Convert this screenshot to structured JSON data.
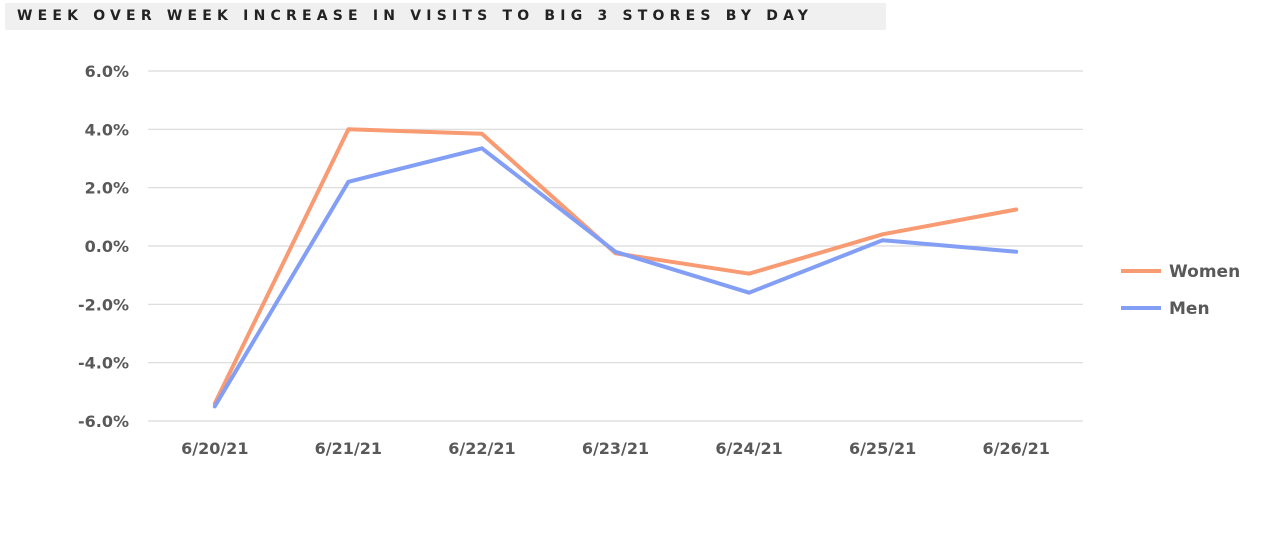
{
  "chart_data": {
    "type": "line",
    "title": "WEEK OVER WEEK INCREASE IN VISITS TO BIG 3 STORES BY DAY",
    "categories": [
      "6/20/21",
      "6/21/21",
      "6/22/21",
      "6/23/21",
      "6/24/21",
      "6/25/21",
      "6/26/21"
    ],
    "y_ticks": [
      "6.0%",
      "4.0%",
      "2.0%",
      "0.0%",
      "-2.0%",
      "-4.0%",
      "-6.0%"
    ],
    "ylim": [
      -6,
      6
    ],
    "y_unit": "%",
    "grid": true,
    "legend_position": "right",
    "series": [
      {
        "name": "Women",
        "color": "#f89a72",
        "values": [
          -5.4,
          4.0,
          3.85,
          -0.25,
          -0.95,
          0.4,
          1.25
        ]
      },
      {
        "name": "Men",
        "color": "#829ef5",
        "values": [
          -5.5,
          2.2,
          3.35,
          -0.2,
          -1.6,
          0.2,
          -0.2
        ]
      }
    ]
  }
}
